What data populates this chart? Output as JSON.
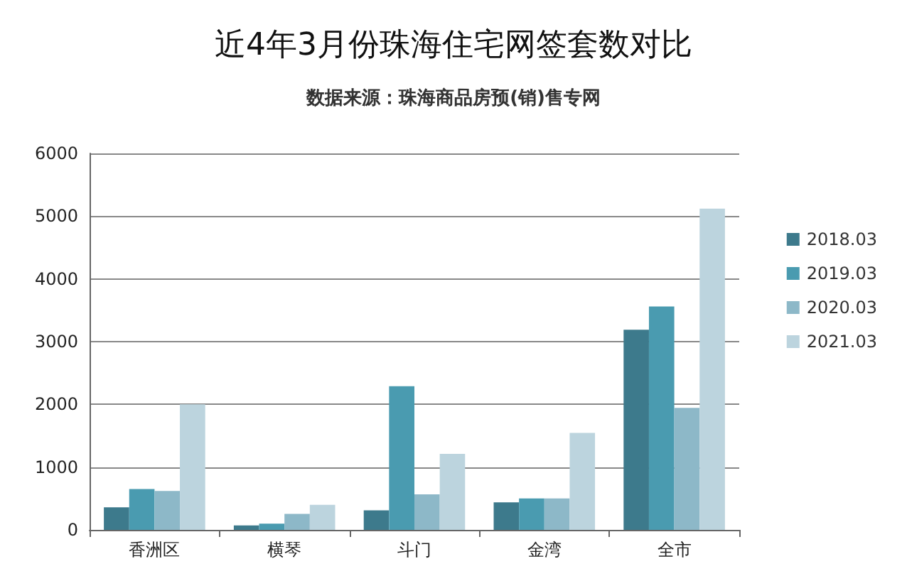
{
  "chart_data": {
    "type": "bar",
    "title": "近4年3月份珠海住宅网签套数对比",
    "subtitle": "数据来源：珠海商品房预(销)售专网",
    "categories": [
      "香洲区",
      "横琴",
      "斗门",
      "金湾",
      "全市"
    ],
    "series": [
      {
        "name": "2018.03",
        "color": "#3d7a8c",
        "values": [
          360,
          70,
          310,
          440,
          3190
        ]
      },
      {
        "name": "2019.03",
        "color": "#4a9bb0",
        "values": [
          650,
          100,
          2290,
          500,
          3560
        ]
      },
      {
        "name": "2020.03",
        "color": "#8db8c8",
        "values": [
          620,
          255,
          565,
          500,
          1945
        ]
      },
      {
        "name": "2021.03",
        "color": "#bcd4de",
        "values": [
          2000,
          400,
          1210,
          1545,
          5120
        ]
      }
    ],
    "ylim": [
      0,
      6000
    ],
    "yticks": [
      0,
      1000,
      2000,
      3000,
      4000,
      5000,
      6000
    ],
    "grid": "y",
    "legend": "right"
  }
}
